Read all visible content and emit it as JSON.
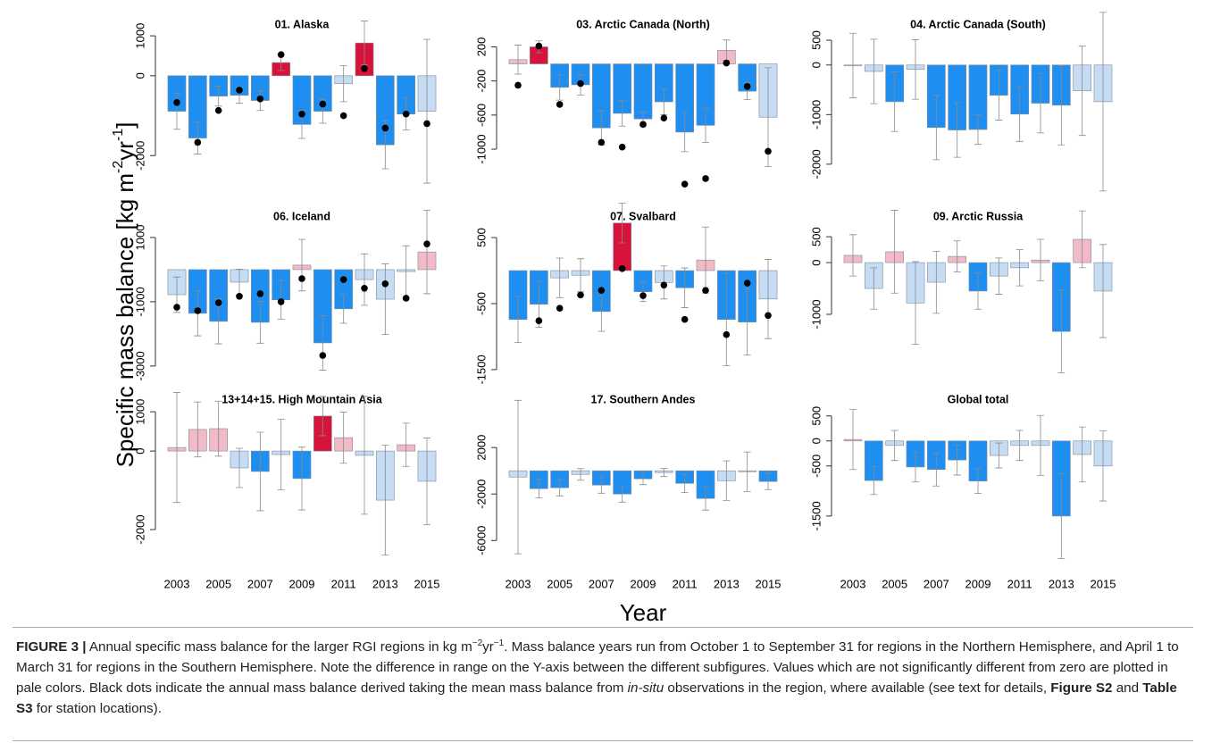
{
  "figure": {
    "y_label": {
      "main": "Specific mass balance [kg m",
      "sup1": "-2",
      "mid": "yr",
      "sup2": "-1",
      "end": "]"
    },
    "x_label": "Year"
  },
  "caption": {
    "parts": [
      "FIGURE 3 |",
      " Annual specific mass balance for the larger RGI regions in kg m",
      "−2",
      "yr",
      "−1",
      ". Mass balance years run from October 1 to September 31 for regions in the Northern Hemisphere, and April 1 to March 31 for regions in the Southern Hemisphere. Note the difference in range on the Y-axis between the different subfigures. Values which are not significantly different from zero are plotted in pale colors. Black dots indicate the annual mass balance derived taking the mean mass balance from ",
      "in-situ",
      " observations in the region, where available (see text for details, ",
      "Figure S2",
      " and ",
      "Table S3",
      " for station locations)."
    ]
  },
  "chart_data": [
    {
      "type": "bar",
      "title": "01. Alaska",
      "x": [
        2003,
        2004,
        2005,
        2006,
        2007,
        2008,
        2009,
        2010,
        2011,
        2012,
        2013,
        2014,
        2015
      ],
      "values": [
        -890,
        -1560,
        -510,
        -490,
        -620,
        330,
        -1220,
        -890,
        -200,
        820,
        -1730,
        -960,
        -890
      ],
      "errors": [
        450,
        400,
        250,
        200,
        250,
        200,
        350,
        300,
        450,
        550,
        600,
        400,
        1800
      ],
      "colors": [
        "#1e8ff0",
        "#1e8ff0",
        "#1e8ff0",
        "#1e8ff0",
        "#1e8ff0",
        "#d7133c",
        "#1e8ff0",
        "#1e8ff0",
        "#c6dcf4",
        "#d7133c",
        "#1e8ff0",
        "#1e8ff0",
        "#c6dcf4"
      ],
      "insitu": [
        -670,
        -1670,
        -870,
        -360,
        -580,
        530,
        -960,
        -710,
        -1000,
        180,
        -1310,
        -960,
        -1200
      ],
      "xlim": [
        2002.4,
        2015.6
      ],
      "ylim": [
        -2800,
        1450
      ],
      "yticks": [
        -2000,
        0,
        1000
      ]
    },
    {
      "type": "bar",
      "title": "03. Arctic Canada (North)",
      "x": [
        2003,
        2004,
        2005,
        2006,
        2007,
        2008,
        2009,
        2010,
        2011,
        2012,
        2013,
        2014,
        2015
      ],
      "values": [
        50,
        200,
        -275,
        -245,
        -750,
        -580,
        -645,
        -445,
        -800,
        -720,
        160,
        -320,
        -625
      ],
      "errors": [
        170,
        70,
        150,
        120,
        200,
        150,
        80,
        150,
        230,
        200,
        120,
        100,
        580
      ],
      "colors": [
        "#f2bac7",
        "#d7133c",
        "#1e8ff0",
        "#1e8ff0",
        "#1e8ff0",
        "#1e8ff0",
        "#1e8ff0",
        "#1e8ff0",
        "#1e8ff0",
        "#1e8ff0",
        "#f2bac7",
        "#1e8ff0",
        "#c6dcf4"
      ],
      "insitu": [
        -250,
        210,
        -475,
        -230,
        -920,
        -975,
        -710,
        -635,
        -1410,
        -1345,
        10,
        -265,
        -1025
      ],
      "xlim": [
        2002.4,
        2015.6
      ],
      "ylim": [
        -1450,
        540
      ],
      "yticks": [
        -1000,
        -600,
        -200,
        200
      ]
    },
    {
      "type": "bar",
      "title": "04. Arctic Canada (South)",
      "x": [
        2003,
        2004,
        2005,
        2006,
        2007,
        2008,
        2009,
        2010,
        2011,
        2012,
        2013,
        2014,
        2015
      ],
      "values": [
        -10,
        -130,
        -740,
        -90,
        -1260,
        -1310,
        -1300,
        -610,
        -990,
        -770,
        -810,
        -520,
        -740
      ],
      "errors": [
        650,
        650,
        600,
        600,
        650,
        550,
        300,
        500,
        550,
        600,
        800,
        900,
        1800
      ],
      "colors": [
        "#c6dcf4",
        "#c6dcf4",
        "#1e8ff0",
        "#c6dcf4",
        "#1e8ff0",
        "#1e8ff0",
        "#1e8ff0",
        "#1e8ff0",
        "#1e8ff0",
        "#1e8ff0",
        "#1e8ff0",
        "#c6dcf4",
        "#c6dcf4"
      ],
      "xlim": [
        2002.4,
        2015.6
      ],
      "ylim": [
        -2470,
        950
      ],
      "yticks": [
        -2000,
        -1000,
        0,
        500
      ]
    },
    {
      "type": "bar",
      "title": "06. Iceland",
      "x": [
        2003,
        2004,
        2005,
        2006,
        2007,
        2008,
        2009,
        2010,
        2011,
        2012,
        2013,
        2014,
        2015
      ],
      "values": [
        -780,
        -1360,
        -1610,
        -390,
        -1640,
        -940,
        140,
        -2280,
        -1220,
        -310,
        -920,
        -60,
        550
      ],
      "errors": [
        550,
        700,
        700,
        400,
        650,
        600,
        800,
        850,
        450,
        800,
        1100,
        800,
        1300
      ],
      "colors": [
        "#c6dcf4",
        "#1e8ff0",
        "#1e8ff0",
        "#c6dcf4",
        "#1e8ff0",
        "#1e8ff0",
        "#f2bac7",
        "#1e8ff0",
        "#1e8ff0",
        "#c6dcf4",
        "#c6dcf4",
        "#c6dcf4",
        "#f2bac7"
      ],
      "insitu": [
        -1170,
        -1280,
        -1030,
        -830,
        -750,
        -1000,
        -280,
        -2670,
        -310,
        -580,
        -440,
        -890,
        800
      ],
      "xlim": [
        2002.4,
        2015.6
      ],
      "ylim": [
        -3420,
        1860
      ],
      "yticks": [
        -3000,
        -1000,
        1000
      ]
    },
    {
      "type": "bar",
      "title": "07. Svalbard",
      "x": [
        2003,
        2004,
        2005,
        2006,
        2007,
        2008,
        2009,
        2010,
        2011,
        2012,
        2013,
        2014,
        2015
      ],
      "values": [
        -740,
        -510,
        -110,
        -70,
        -620,
        720,
        -320,
        -180,
        -260,
        160,
        -740,
        -780,
        -430
      ],
      "errors": [
        350,
        350,
        300,
        250,
        300,
        300,
        150,
        250,
        300,
        500,
        700,
        500,
        600
      ],
      "colors": [
        "#1e8ff0",
        "#1e8ff0",
        "#c6dcf4",
        "#c6dcf4",
        "#1e8ff0",
        "#d7133c",
        "#1e8ff0",
        "#c6dcf4",
        "#1e8ff0",
        "#f2bac7",
        "#1e8ff0",
        "#1e8ff0",
        "#c6dcf4"
      ],
      "insitu": [
        null,
        -760,
        -570,
        -370,
        -300,
        30,
        -380,
        -220,
        -740,
        -300,
        -970,
        -190,
        -680
      ],
      "xlim": [
        2002.4,
        2015.6
      ],
      "ylim": [
        -1650,
        920
      ],
      "yticks": [
        -1500,
        -500,
        500
      ]
    },
    {
      "type": "bar",
      "title": "09. Arctic Russia",
      "x": [
        2003,
        2004,
        2005,
        2006,
        2007,
        2008,
        2009,
        2010,
        2011,
        2012,
        2013,
        2014,
        2015
      ],
      "values": [
        140,
        -500,
        210,
        -780,
        -380,
        120,
        -550,
        -260,
        -100,
        50,
        -1330,
        450,
        -550
      ],
      "errors": [
        400,
        400,
        800,
        800,
        600,
        300,
        350,
        350,
        350,
        400,
        800,
        550,
        900
      ],
      "colors": [
        "#f2bac7",
        "#c6dcf4",
        "#f2bac7",
        "#c6dcf4",
        "#c6dcf4",
        "#f2bac7",
        "#1e8ff0",
        "#c6dcf4",
        "#c6dcf4",
        "#f2bac7",
        "#1e8ff0",
        "#f2bac7",
        "#c6dcf4"
      ],
      "xlim": [
        2002.4,
        2015.6
      ],
      "ylim": [
        -2260,
        1020
      ],
      "yticks": [
        -1000,
        0,
        500
      ]
    },
    {
      "type": "bar",
      "title": "13+14+15. High Mountain Asia",
      "x": [
        2003,
        2004,
        2005,
        2006,
        2007,
        2008,
        2009,
        2010,
        2011,
        2012,
        2013,
        2014,
        2015
      ],
      "values": [
        90,
        550,
        570,
        -430,
        -520,
        -90,
        -700,
        890,
        340,
        -110,
        -1250,
        160,
        -770
      ],
      "errors": [
        1400,
        700,
        700,
        500,
        1000,
        900,
        800,
        500,
        650,
        1500,
        1400,
        550,
        1100
      ],
      "colors": [
        "#f2bac7",
        "#f2bac7",
        "#f2bac7",
        "#c6dcf4",
        "#1e8ff0",
        "#c6dcf4",
        "#1e8ff0",
        "#d7133c",
        "#f2bac7",
        "#c6dcf4",
        "#c6dcf4",
        "#f2bac7",
        "#c6dcf4"
      ],
      "xlim": [
        2002.4,
        2015.6
      ],
      "ylim": [
        -2840,
        1480
      ],
      "yticks": [
        -2000,
        0,
        1000
      ],
      "xticks": [
        2003,
        2005,
        2007,
        2009,
        2011,
        2013,
        2015
      ]
    },
    {
      "type": "bar",
      "title": "17. Southern Andes",
      "x": [
        2003,
        2004,
        2005,
        2006,
        2007,
        2008,
        2009,
        2010,
        2011,
        2012,
        2013,
        2014,
        2015
      ],
      "values": [
        -540,
        -1540,
        -1460,
        -310,
        -1230,
        -2000,
        -690,
        -150,
        -1080,
        -2380,
        -850,
        -80,
        -920
      ],
      "errors": [
        6600,
        800,
        700,
        500,
        700,
        700,
        500,
        350,
        800,
        1000,
        1700,
        1700,
        700
      ],
      "colors": [
        "#c6dcf4",
        "#1e8ff0",
        "#1e8ff0",
        "#c6dcf4",
        "#1e8ff0",
        "#1e8ff0",
        "#1e8ff0",
        "#c6dcf4",
        "#1e8ff0",
        "#1e8ff0",
        "#c6dcf4",
        "#c6dcf4",
        "#1e8ff0"
      ],
      "xlim": [
        2002.4,
        2015.6
      ],
      "ylim": [
        -7900,
        6700
      ],
      "yticks": [
        -6000,
        -2000,
        2000
      ],
      "xticks": [
        2003,
        2005,
        2007,
        2009,
        2011,
        2013,
        2015
      ]
    },
    {
      "type": "bar",
      "title": "Global total",
      "x": [
        2003,
        2004,
        2005,
        2006,
        2007,
        2008,
        2009,
        2010,
        2011,
        2012,
        2013,
        2014,
        2015
      ],
      "values": [
        30,
        -790,
        -90,
        -520,
        -570,
        -380,
        -800,
        -290,
        -90,
        -90,
        -1500,
        -270,
        -500
      ],
      "errors": [
        600,
        280,
        300,
        300,
        330,
        300,
        250,
        250,
        300,
        600,
        850,
        550,
        700
      ],
      "colors": [
        "#f2bac7",
        "#1e8ff0",
        "#c6dcf4",
        "#1e8ff0",
        "#1e8ff0",
        "#1e8ff0",
        "#1e8ff0",
        "#c6dcf4",
        "#c6dcf4",
        "#c6dcf4",
        "#1e8ff0",
        "#c6dcf4",
        "#c6dcf4"
      ],
      "xlim": [
        2002.4,
        2015.6
      ],
      "ylim": [
        -2430,
        960
      ],
      "yticks": [
        -1500,
        -500,
        0,
        500
      ],
      "xticks": [
        2003,
        2005,
        2007,
        2009,
        2011,
        2013,
        2015
      ]
    }
  ]
}
